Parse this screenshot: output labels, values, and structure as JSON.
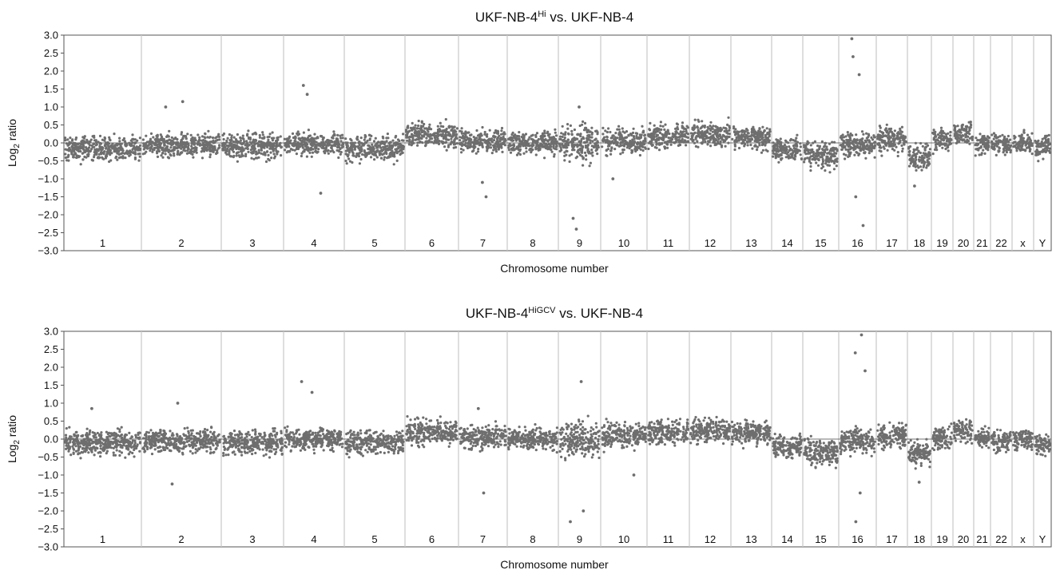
{
  "chart_data": [
    {
      "type": "scatter",
      "title": {
        "base": "UKF-NB-4",
        "superscript": "Hi",
        "suffix": " vs. UKF-NB-4"
      },
      "xlabel": "Chromosome number",
      "ylabel": {
        "base": "Log",
        "subscript": "2",
        "suffix": " ratio"
      },
      "ylim": [
        -3.0,
        3.0
      ],
      "yticks": [
        "3.0",
        "2.5",
        "2.0",
        "1.5",
        "1.0",
        "0.5",
        "0.0",
        "−0.5",
        "−1.0",
        "−1.5",
        "−2.0",
        "−2.5",
        "−3.0"
      ],
      "ytick_values": [
        3.0,
        2.5,
        2.0,
        1.5,
        1.0,
        0.5,
        0.0,
        -0.5,
        -1.0,
        -1.5,
        -2.0,
        -2.5,
        -3.0
      ],
      "grid": "vertical chromosome separators",
      "point_color": "#6e6e6e",
      "chromosomes": [
        {
          "label": "1",
          "mean": -0.15,
          "spread": 0.5
        },
        {
          "label": "2",
          "mean": -0.05,
          "spread": 0.45
        },
        {
          "label": "3",
          "mean": -0.1,
          "spread": 0.5
        },
        {
          "label": "4",
          "mean": -0.02,
          "spread": 0.45
        },
        {
          "label": "5",
          "mean": -0.15,
          "spread": 0.5
        },
        {
          "label": "6",
          "mean": 0.22,
          "spread": 0.5
        },
        {
          "label": "7",
          "mean": 0.05,
          "spread": 0.45
        },
        {
          "label": "8",
          "mean": 0.0,
          "spread": 0.45
        },
        {
          "label": "9",
          "mean": 0.0,
          "spread": 0.7
        },
        {
          "label": "10",
          "mean": 0.05,
          "spread": 0.5
        },
        {
          "label": "11",
          "mean": 0.2,
          "spread": 0.5
        },
        {
          "label": "12",
          "mean": 0.25,
          "spread": 0.5
        },
        {
          "label": "13",
          "mean": 0.15,
          "spread": 0.45
        },
        {
          "label": "14",
          "mean": -0.2,
          "spread": 0.45
        },
        {
          "label": "15",
          "mean": -0.35,
          "spread": 0.55
        },
        {
          "label": "16",
          "mean": -0.05,
          "spread": 0.5
        },
        {
          "label": "17",
          "mean": 0.1,
          "spread": 0.5
        },
        {
          "label": "18",
          "mean": -0.4,
          "spread": 0.55
        },
        {
          "label": "19",
          "mean": 0.05,
          "spread": 0.45
        },
        {
          "label": "20",
          "mean": 0.25,
          "spread": 0.45
        },
        {
          "label": "21",
          "mean": 0.0,
          "spread": 0.4
        },
        {
          "label": "22",
          "mean": -0.05,
          "spread": 0.4
        },
        {
          "label": "x",
          "mean": 0.0,
          "spread": 0.4
        },
        {
          "label": "Y",
          "mean": -0.1,
          "spread": 0.45
        }
      ],
      "notable_points": [
        {
          "chromosome": "2",
          "y": 1.15
        },
        {
          "chromosome": "2",
          "y": 1.0
        },
        {
          "chromosome": "4",
          "y": 1.6
        },
        {
          "chromosome": "4",
          "y": 1.35
        },
        {
          "chromosome": "4",
          "y": -1.4
        },
        {
          "chromosome": "7",
          "y": -1.5
        },
        {
          "chromosome": "7",
          "y": -1.1
        },
        {
          "chromosome": "9",
          "y": 1.0
        },
        {
          "chromosome": "9",
          "y": -2.1
        },
        {
          "chromosome": "9",
          "y": -2.4
        },
        {
          "chromosome": "10",
          "y": -1.0
        },
        {
          "chromosome": "16",
          "y": 2.9
        },
        {
          "chromosome": "16",
          "y": 2.4
        },
        {
          "chromosome": "16",
          "y": 1.9
        },
        {
          "chromosome": "16",
          "y": -1.5
        },
        {
          "chromosome": "16",
          "y": -2.3
        },
        {
          "chromosome": "18",
          "y": -1.2
        }
      ]
    },
    {
      "type": "scatter",
      "title": {
        "base": "UKF-NB-4",
        "superscript": "HiGCV",
        "suffix": " vs. UKF-NB-4"
      },
      "xlabel": "Chromosome number",
      "ylabel": {
        "base": "Log",
        "subscript": "2",
        "suffix": " ratio"
      },
      "ylim": [
        -3.0,
        3.0
      ],
      "yticks": [
        "3.0",
        "2.5",
        "2.0",
        "1.5",
        "1.0",
        "0.5",
        "0.0",
        "−0.5",
        "−1.0",
        "−1.5",
        "−2.0",
        "−2.5",
        "−3.0"
      ],
      "ytick_values": [
        3.0,
        2.5,
        2.0,
        1.5,
        1.0,
        0.5,
        0.0,
        -0.5,
        -1.0,
        -1.5,
        -2.0,
        -2.5,
        -3.0
      ],
      "grid": "vertical chromosome separators",
      "point_color": "#6e6e6e",
      "chromosomes": [
        {
          "label": "1",
          "mean": -0.1,
          "spread": 0.5
        },
        {
          "label": "2",
          "mean": -0.05,
          "spread": 0.45
        },
        {
          "label": "3",
          "mean": -0.1,
          "spread": 0.5
        },
        {
          "label": "4",
          "mean": 0.0,
          "spread": 0.45
        },
        {
          "label": "5",
          "mean": -0.1,
          "spread": 0.5
        },
        {
          "label": "6",
          "mean": 0.2,
          "spread": 0.5
        },
        {
          "label": "7",
          "mean": 0.05,
          "spread": 0.45
        },
        {
          "label": "8",
          "mean": 0.0,
          "spread": 0.45
        },
        {
          "label": "9",
          "mean": 0.0,
          "spread": 0.7
        },
        {
          "label": "10",
          "mean": 0.1,
          "spread": 0.5
        },
        {
          "label": "11",
          "mean": 0.2,
          "spread": 0.5
        },
        {
          "label": "12",
          "mean": 0.25,
          "spread": 0.5
        },
        {
          "label": "13",
          "mean": 0.15,
          "spread": 0.45
        },
        {
          "label": "14",
          "mean": -0.2,
          "spread": 0.45
        },
        {
          "label": "15",
          "mean": -0.35,
          "spread": 0.55
        },
        {
          "label": "16",
          "mean": -0.05,
          "spread": 0.5
        },
        {
          "label": "17",
          "mean": 0.1,
          "spread": 0.5
        },
        {
          "label": "18",
          "mean": -0.4,
          "spread": 0.55
        },
        {
          "label": "19",
          "mean": 0.05,
          "spread": 0.45
        },
        {
          "label": "20",
          "mean": 0.25,
          "spread": 0.45
        },
        {
          "label": "21",
          "mean": 0.0,
          "spread": 0.4
        },
        {
          "label": "22",
          "mean": -0.05,
          "spread": 0.4
        },
        {
          "label": "x",
          "mean": 0.0,
          "spread": 0.4
        },
        {
          "label": "Y",
          "mean": -0.15,
          "spread": 0.45
        }
      ],
      "notable_points": [
        {
          "chromosome": "1",
          "y": 0.85
        },
        {
          "chromosome": "2",
          "y": 1.0
        },
        {
          "chromosome": "2",
          "y": -1.25
        },
        {
          "chromosome": "4",
          "y": 1.6
        },
        {
          "chromosome": "4",
          "y": 1.3
        },
        {
          "chromosome": "7",
          "y": -1.5
        },
        {
          "chromosome": "7",
          "y": 0.85
        },
        {
          "chromosome": "9",
          "y": 1.6
        },
        {
          "chromosome": "9",
          "y": -2.0
        },
        {
          "chromosome": "9",
          "y": -2.3
        },
        {
          "chromosome": "10",
          "y": -1.0
        },
        {
          "chromosome": "16",
          "y": 2.9
        },
        {
          "chromosome": "16",
          "y": 2.4
        },
        {
          "chromosome": "16",
          "y": 1.9
        },
        {
          "chromosome": "16",
          "y": -1.5
        },
        {
          "chromosome": "16",
          "y": -2.3
        },
        {
          "chromosome": "18",
          "y": -1.2
        }
      ]
    }
  ]
}
